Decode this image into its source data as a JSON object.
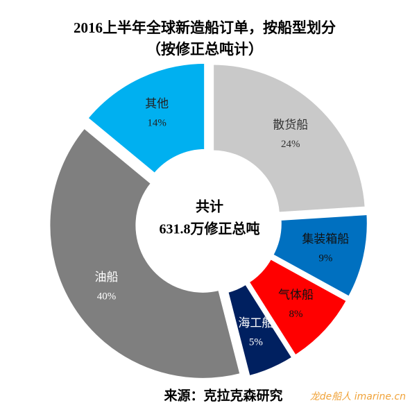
{
  "chart_data": {
    "type": "donut",
    "title": "2016上半年全球新造船订单，按船型划分",
    "subtitle": "（按修正总吨计）",
    "categories": [
      "散货船",
      "集装箱船",
      "气体船",
      "海工船",
      "油船",
      "其他"
    ],
    "values": [
      24,
      9,
      8,
      5,
      40,
      14
    ],
    "value_labels": [
      "24%",
      "9%",
      "8%",
      "5%",
      "40%",
      "14%"
    ],
    "colors": [
      "#c9c9c9",
      "#0070c0",
      "#ff0000",
      "#002060",
      "#7f7f7f",
      "#00b0f0"
    ],
    "label_colors": [
      "#333333",
      "#111111",
      "#111111",
      "#ffffff",
      "#ffffff",
      "#222222"
    ],
    "annotations": [
      "共计",
      "631.8万修正总吨"
    ],
    "source": "来源：克拉克森研究",
    "watermark": "龙de船人 imarine.cn"
  }
}
